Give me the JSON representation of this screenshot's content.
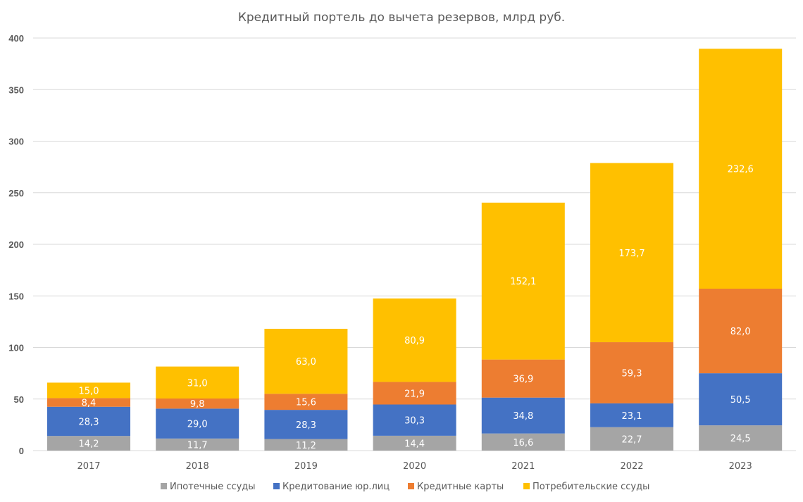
{
  "chart_data": {
    "type": "bar",
    "stacked": true,
    "title": "Кредитный  портель до вычета резервов,  млрд руб.",
    "xlabel": "",
    "ylabel": "",
    "ylim": [
      0,
      400
    ],
    "yticks": [
      0,
      50,
      100,
      150,
      200,
      250,
      300,
      350,
      400
    ],
    "grid": true,
    "legend": "bottom",
    "categories": [
      "2017",
      "2018",
      "2019",
      "2020",
      "2021",
      "2022",
      "2023"
    ],
    "series": [
      {
        "name": "Ипотечные ссуды",
        "color": "#a5a5a5",
        "values": [
          14.2,
          11.7,
          11.2,
          14.4,
          16.6,
          22.7,
          24.5
        ],
        "labels": [
          "14,2",
          "11,7",
          "11,2",
          "14,4",
          "16,6",
          "22,7",
          "24,5"
        ]
      },
      {
        "name": "Кредитование юр.лиц",
        "color": "#4472c4",
        "values": [
          28.3,
          29.0,
          28.3,
          30.3,
          34.8,
          23.1,
          50.5
        ],
        "labels": [
          "28,3",
          "29,0",
          "28,3",
          "30,3",
          "34,8",
          "23,1",
          "50,5"
        ]
      },
      {
        "name": "Кредитные карты",
        "color": "#ed7d31",
        "values": [
          8.4,
          9.8,
          15.6,
          21.9,
          36.9,
          59.3,
          82.0
        ],
        "labels": [
          "8,4",
          "9,8",
          "15,6",
          "21,9",
          "36,9",
          "59,3",
          "82,0"
        ]
      },
      {
        "name": "Потребительские ссуды",
        "color": "#ffc000",
        "values": [
          15.0,
          31.0,
          63.0,
          80.9,
          152.1,
          173.7,
          232.6
        ],
        "labels": [
          "15,0",
          "31,0",
          "63,0",
          "80,9",
          "152,1",
          "173,7",
          "232,6"
        ]
      }
    ]
  }
}
